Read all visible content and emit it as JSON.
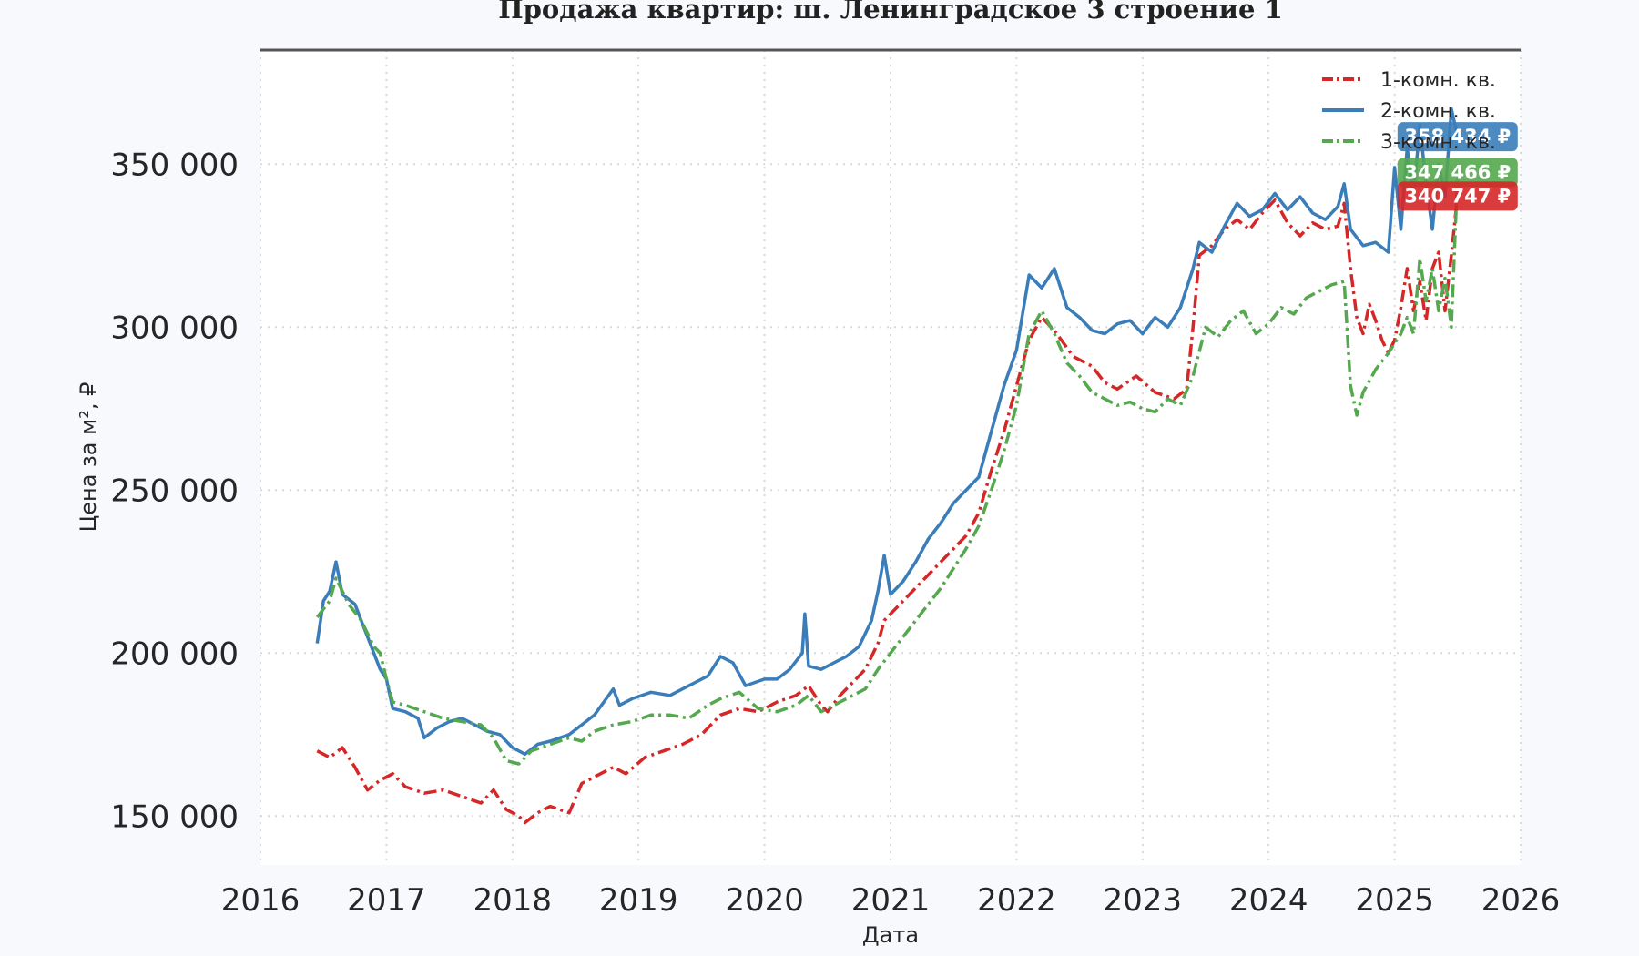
{
  "chart_data": {
    "type": "line",
    "title": "Продажа квартир: ш. Ленинградское 3 строение 1",
    "xlabel": "Дата",
    "ylabel": "Цена за м², ₽",
    "xlim": [
      2016,
      2026
    ],
    "ylim": [
      135000,
      385000
    ],
    "x_ticks": [
      "2016",
      "2017",
      "2018",
      "2019",
      "2020",
      "2021",
      "2022",
      "2023",
      "2024",
      "2025",
      "2026"
    ],
    "y_ticks": [
      "150 000",
      "200 000",
      "250 000",
      "300 000",
      "350 000"
    ],
    "y_tick_values": [
      150000,
      200000,
      250000,
      300000,
      350000
    ],
    "grid": true,
    "legend_position": "top-right",
    "series": [
      {
        "name": "1-комн. кв.",
        "color": "#d62728",
        "dash": "dashdot",
        "last_label": "340 747 ₽",
        "points": [
          [
            2016.45,
            170000
          ],
          [
            2016.55,
            168000
          ],
          [
            2016.65,
            171000
          ],
          [
            2016.75,
            165000
          ],
          [
            2016.85,
            158000
          ],
          [
            2016.95,
            161000
          ],
          [
            2017.05,
            163000
          ],
          [
            2017.15,
            159000
          ],
          [
            2017.3,
            157000
          ],
          [
            2017.45,
            158000
          ],
          [
            2017.6,
            156000
          ],
          [
            2017.75,
            154000
          ],
          [
            2017.85,
            158000
          ],
          [
            2017.95,
            152000
          ],
          [
            2018.05,
            150000
          ],
          [
            2018.1,
            148000
          ],
          [
            2018.2,
            151000
          ],
          [
            2018.3,
            153000
          ],
          [
            2018.45,
            151000
          ],
          [
            2018.55,
            160000
          ],
          [
            2018.65,
            162000
          ],
          [
            2018.8,
            165000
          ],
          [
            2018.9,
            163000
          ],
          [
            2019.05,
            168000
          ],
          [
            2019.2,
            170000
          ],
          [
            2019.35,
            172000
          ],
          [
            2019.5,
            175000
          ],
          [
            2019.65,
            181000
          ],
          [
            2019.8,
            183000
          ],
          [
            2019.95,
            182000
          ],
          [
            2020.1,
            185000
          ],
          [
            2020.25,
            187000
          ],
          [
            2020.35,
            190000
          ],
          [
            2020.45,
            184000
          ],
          [
            2020.5,
            182000
          ],
          [
            2020.6,
            187000
          ],
          [
            2020.7,
            191000
          ],
          [
            2020.8,
            195000
          ],
          [
            2020.9,
            203000
          ],
          [
            2020.95,
            210000
          ],
          [
            2021.05,
            214000
          ],
          [
            2021.15,
            218000
          ],
          [
            2021.25,
            222000
          ],
          [
            2021.35,
            226000
          ],
          [
            2021.5,
            232000
          ],
          [
            2021.6,
            236000
          ],
          [
            2021.7,
            243000
          ],
          [
            2021.8,
            256000
          ],
          [
            2021.9,
            268000
          ],
          [
            2022.0,
            282000
          ],
          [
            2022.1,
            296000
          ],
          [
            2022.2,
            303000
          ],
          [
            2022.3,
            299000
          ],
          [
            2022.45,
            291000
          ],
          [
            2022.6,
            288000
          ],
          [
            2022.7,
            283000
          ],
          [
            2022.8,
            281000
          ],
          [
            2022.95,
            285000
          ],
          [
            2023.1,
            280000
          ],
          [
            2023.25,
            278000
          ],
          [
            2023.35,
            281000
          ],
          [
            2023.4,
            300000
          ],
          [
            2023.45,
            322000
          ],
          [
            2023.55,
            325000
          ],
          [
            2023.65,
            330000
          ],
          [
            2023.75,
            333000
          ],
          [
            2023.85,
            330000
          ],
          [
            2023.95,
            335000
          ],
          [
            2024.05,
            339000
          ],
          [
            2024.15,
            332000
          ],
          [
            2024.25,
            328000
          ],
          [
            2024.35,
            332000
          ],
          [
            2024.45,
            330000
          ],
          [
            2024.55,
            331000
          ],
          [
            2024.6,
            338000
          ],
          [
            2024.65,
            318000
          ],
          [
            2024.7,
            303000
          ],
          [
            2024.75,
            298000
          ],
          [
            2024.8,
            307000
          ],
          [
            2024.85,
            302000
          ],
          [
            2024.9,
            296000
          ],
          [
            2024.95,
            292000
          ],
          [
            2025.0,
            296000
          ],
          [
            2025.05,
            306000
          ],
          [
            2025.1,
            318000
          ],
          [
            2025.15,
            305000
          ],
          [
            2025.2,
            314000
          ],
          [
            2025.25,
            302000
          ],
          [
            2025.3,
            318000
          ],
          [
            2025.35,
            323000
          ],
          [
            2025.4,
            305000
          ],
          [
            2025.45,
            322000
          ],
          [
            2025.5,
            340747
          ]
        ]
      },
      {
        "name": "2-комн. кв.",
        "color": "#3a7db9",
        "dash": "solid",
        "last_label": "358 434 ₽",
        "points": [
          [
            2016.45,
            203000
          ],
          [
            2016.5,
            216000
          ],
          [
            2016.55,
            219000
          ],
          [
            2016.6,
            228000
          ],
          [
            2016.65,
            218000
          ],
          [
            2016.75,
            215000
          ],
          [
            2016.85,
            205000
          ],
          [
            2016.95,
            195000
          ],
          [
            2017.0,
            192000
          ],
          [
            2017.05,
            183000
          ],
          [
            2017.15,
            182000
          ],
          [
            2017.25,
            180000
          ],
          [
            2017.3,
            174000
          ],
          [
            2017.4,
            177000
          ],
          [
            2017.5,
            179000
          ],
          [
            2017.6,
            180000
          ],
          [
            2017.7,
            178000
          ],
          [
            2017.8,
            176000
          ],
          [
            2017.9,
            175000
          ],
          [
            2018.0,
            171000
          ],
          [
            2018.1,
            169000
          ],
          [
            2018.2,
            172000
          ],
          [
            2018.3,
            173000
          ],
          [
            2018.45,
            175000
          ],
          [
            2018.55,
            178000
          ],
          [
            2018.65,
            181000
          ],
          [
            2018.8,
            189000
          ],
          [
            2018.85,
            184000
          ],
          [
            2018.95,
            186000
          ],
          [
            2019.1,
            188000
          ],
          [
            2019.25,
            187000
          ],
          [
            2019.4,
            190000
          ],
          [
            2019.55,
            193000
          ],
          [
            2019.65,
            199000
          ],
          [
            2019.75,
            197000
          ],
          [
            2019.85,
            190000
          ],
          [
            2020.0,
            192000
          ],
          [
            2020.1,
            192000
          ],
          [
            2020.2,
            195000
          ],
          [
            2020.3,
            200000
          ],
          [
            2020.32,
            212000
          ],
          [
            2020.35,
            196000
          ],
          [
            2020.45,
            195000
          ],
          [
            2020.55,
            197000
          ],
          [
            2020.65,
            199000
          ],
          [
            2020.75,
            202000
          ],
          [
            2020.85,
            210000
          ],
          [
            2020.9,
            219000
          ],
          [
            2020.95,
            230000
          ],
          [
            2021.0,
            218000
          ],
          [
            2021.1,
            222000
          ],
          [
            2021.2,
            228000
          ],
          [
            2021.3,
            235000
          ],
          [
            2021.4,
            240000
          ],
          [
            2021.5,
            246000
          ],
          [
            2021.6,
            250000
          ],
          [
            2021.7,
            254000
          ],
          [
            2021.8,
            268000
          ],
          [
            2021.9,
            282000
          ],
          [
            2022.0,
            293000
          ],
          [
            2022.1,
            316000
          ],
          [
            2022.2,
            312000
          ],
          [
            2022.3,
            318000
          ],
          [
            2022.4,
            306000
          ],
          [
            2022.5,
            303000
          ],
          [
            2022.6,
            299000
          ],
          [
            2022.7,
            298000
          ],
          [
            2022.8,
            301000
          ],
          [
            2022.9,
            302000
          ],
          [
            2023.0,
            298000
          ],
          [
            2023.1,
            303000
          ],
          [
            2023.2,
            300000
          ],
          [
            2023.3,
            306000
          ],
          [
            2023.4,
            318000
          ],
          [
            2023.45,
            326000
          ],
          [
            2023.55,
            323000
          ],
          [
            2023.65,
            331000
          ],
          [
            2023.75,
            338000
          ],
          [
            2023.85,
            334000
          ],
          [
            2023.95,
            336000
          ],
          [
            2024.05,
            341000
          ],
          [
            2024.15,
            336000
          ],
          [
            2024.25,
            340000
          ],
          [
            2024.35,
            335000
          ],
          [
            2024.45,
            333000
          ],
          [
            2024.55,
            337000
          ],
          [
            2024.6,
            344000
          ],
          [
            2024.65,
            330000
          ],
          [
            2024.75,
            325000
          ],
          [
            2024.85,
            326000
          ],
          [
            2024.95,
            323000
          ],
          [
            2025.0,
            349000
          ],
          [
            2025.05,
            330000
          ],
          [
            2025.1,
            355000
          ],
          [
            2025.15,
            340000
          ],
          [
            2025.2,
            362000
          ],
          [
            2025.25,
            344000
          ],
          [
            2025.3,
            330000
          ],
          [
            2025.35,
            350000
          ],
          [
            2025.4,
            340000
          ],
          [
            2025.45,
            367000
          ],
          [
            2025.5,
            358434
          ]
        ]
      },
      {
        "name": "3-комн. кв.",
        "color": "#55a84f",
        "dash": "dashdot",
        "last_label": "347 466 ₽",
        "points": [
          [
            2016.45,
            211000
          ],
          [
            2016.55,
            216000
          ],
          [
            2016.6,
            223000
          ],
          [
            2016.7,
            215000
          ],
          [
            2016.8,
            210000
          ],
          [
            2016.9,
            202000
          ],
          [
            2016.95,
            200000
          ],
          [
            2017.0,
            192000
          ],
          [
            2017.05,
            185000
          ],
          [
            2017.15,
            184000
          ],
          [
            2017.3,
            182000
          ],
          [
            2017.45,
            180000
          ],
          [
            2017.6,
            179000
          ],
          [
            2017.75,
            178000
          ],
          [
            2017.85,
            174000
          ],
          [
            2017.95,
            167000
          ],
          [
            2018.05,
            166000
          ],
          [
            2018.15,
            170000
          ],
          [
            2018.3,
            172000
          ],
          [
            2018.45,
            174000
          ],
          [
            2018.55,
            173000
          ],
          [
            2018.65,
            176000
          ],
          [
            2018.8,
            178000
          ],
          [
            2018.95,
            179000
          ],
          [
            2019.1,
            181000
          ],
          [
            2019.25,
            181000
          ],
          [
            2019.4,
            180000
          ],
          [
            2019.55,
            184000
          ],
          [
            2019.65,
            186000
          ],
          [
            2019.8,
            188000
          ],
          [
            2019.95,
            183000
          ],
          [
            2020.1,
            182000
          ],
          [
            2020.25,
            184000
          ],
          [
            2020.35,
            187000
          ],
          [
            2020.45,
            182000
          ],
          [
            2020.55,
            184000
          ],
          [
            2020.65,
            186000
          ],
          [
            2020.8,
            189000
          ],
          [
            2020.9,
            195000
          ],
          [
            2021.0,
            200000
          ],
          [
            2021.1,
            205000
          ],
          [
            2021.2,
            210000
          ],
          [
            2021.3,
            215000
          ],
          [
            2021.4,
            220000
          ],
          [
            2021.5,
            226000
          ],
          [
            2021.6,
            232000
          ],
          [
            2021.7,
            239000
          ],
          [
            2021.8,
            250000
          ],
          [
            2021.9,
            262000
          ],
          [
            2022.0,
            276000
          ],
          [
            2022.1,
            298000
          ],
          [
            2022.2,
            305000
          ],
          [
            2022.3,
            298000
          ],
          [
            2022.4,
            289000
          ],
          [
            2022.5,
            285000
          ],
          [
            2022.6,
            280000
          ],
          [
            2022.7,
            278000
          ],
          [
            2022.8,
            276000
          ],
          [
            2022.9,
            277000
          ],
          [
            2023.0,
            275000
          ],
          [
            2023.1,
            274000
          ],
          [
            2023.2,
            278000
          ],
          [
            2023.3,
            276000
          ],
          [
            2023.4,
            285000
          ],
          [
            2023.5,
            300000
          ],
          [
            2023.6,
            297000
          ],
          [
            2023.7,
            302000
          ],
          [
            2023.8,
            305000
          ],
          [
            2023.9,
            298000
          ],
          [
            2024.0,
            301000
          ],
          [
            2024.1,
            306000
          ],
          [
            2024.2,
            304000
          ],
          [
            2024.3,
            309000
          ],
          [
            2024.4,
            311000
          ],
          [
            2024.5,
            313000
          ],
          [
            2024.6,
            314000
          ],
          [
            2024.65,
            282000
          ],
          [
            2024.7,
            273000
          ],
          [
            2024.75,
            280000
          ],
          [
            2024.85,
            287000
          ],
          [
            2024.95,
            292000
          ],
          [
            2025.05,
            298000
          ],
          [
            2025.1,
            303000
          ],
          [
            2025.15,
            298000
          ],
          [
            2025.2,
            321000
          ],
          [
            2025.25,
            308000
          ],
          [
            2025.3,
            318000
          ],
          [
            2025.35,
            305000
          ],
          [
            2025.4,
            315000
          ],
          [
            2025.45,
            300000
          ],
          [
            2025.5,
            347466
          ]
        ]
      }
    ]
  }
}
